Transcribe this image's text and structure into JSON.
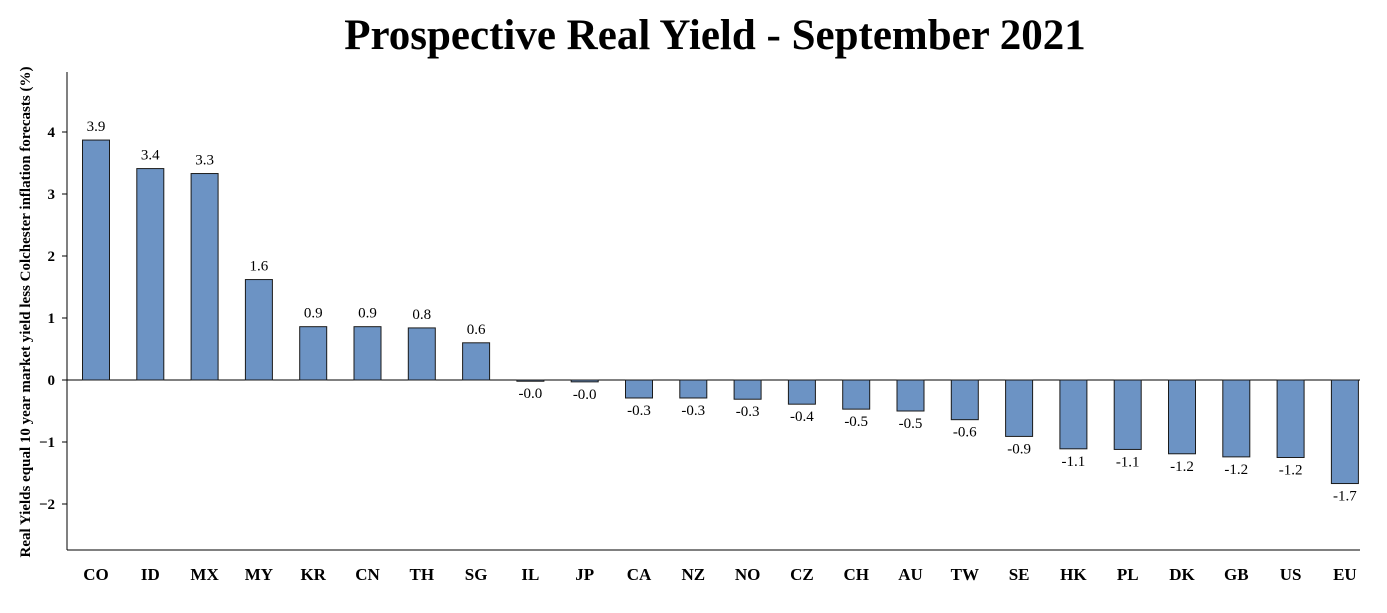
{
  "chart_data": {
    "type": "bar",
    "title": "Prospective Real Yield - September 2021",
    "ylabel": "Real Yields equal 10 year market yield less Colchester inflation forecasts (%)",
    "xlabel": "",
    "ylim": [
      -2.8,
      5.0
    ],
    "yticks": [
      -2,
      -1,
      0,
      1,
      2,
      3,
      4
    ],
    "grid": false,
    "bar_color": "#6c93c4",
    "categories": [
      "CO",
      "ID",
      "MX",
      "MY",
      "KR",
      "CN",
      "TH",
      "SG",
      "IL",
      "JP",
      "CA",
      "NZ",
      "NO",
      "CZ",
      "CH",
      "AU",
      "TW",
      "SE",
      "HK",
      "PL",
      "DK",
      "GB",
      "US",
      "EU"
    ],
    "values": [
      3.87,
      3.41,
      3.33,
      1.62,
      0.86,
      0.86,
      0.84,
      0.6,
      -0.02,
      -0.03,
      -0.29,
      -0.29,
      -0.31,
      -0.39,
      -0.47,
      -0.5,
      -0.64,
      -0.91,
      -1.11,
      -1.12,
      -1.19,
      -1.24,
      -1.25,
      -1.67
    ],
    "data_labels": [
      "3.9",
      "3.4",
      "3.3",
      "1.6",
      "0.9",
      "0.9",
      "0.8",
      "0.6",
      "-0.0",
      "-0.0",
      "-0.3",
      "-0.3",
      "-0.3",
      "-0.4",
      "-0.5",
      "-0.5",
      "-0.6",
      "-0.9",
      "-1.1",
      "-1.1",
      "-1.2",
      "-1.2",
      "-1.2",
      "-1.7"
    ]
  }
}
